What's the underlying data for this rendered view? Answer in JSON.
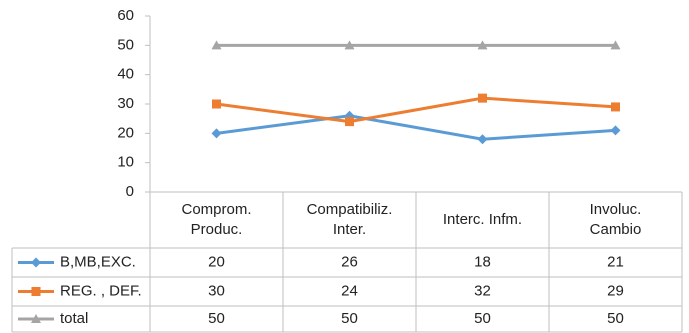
{
  "chart_data": {
    "type": "line",
    "categories": [
      "Comprom.\nProduc.",
      "Compatibiliz.\nInter.",
      "Interc.  Infm.",
      "Involuc.\nCambio"
    ],
    "series": [
      {
        "name": "B,MB,EXC.",
        "color": "#5b9bd5",
        "marker": "diamond",
        "values": [
          20,
          26,
          18,
          21
        ]
      },
      {
        "name": "REG. , DEF.",
        "color": "#ed7d31",
        "marker": "square",
        "values": [
          30,
          24,
          32,
          29
        ]
      },
      {
        "name": "total",
        "color": "#a5a5a5",
        "marker": "triangle",
        "values": [
          50,
          50,
          50,
          50
        ]
      }
    ],
    "ylim": [
      0,
      60
    ],
    "yticks": [
      0,
      10,
      20,
      30,
      40,
      50,
      60
    ],
    "grid": false
  }
}
